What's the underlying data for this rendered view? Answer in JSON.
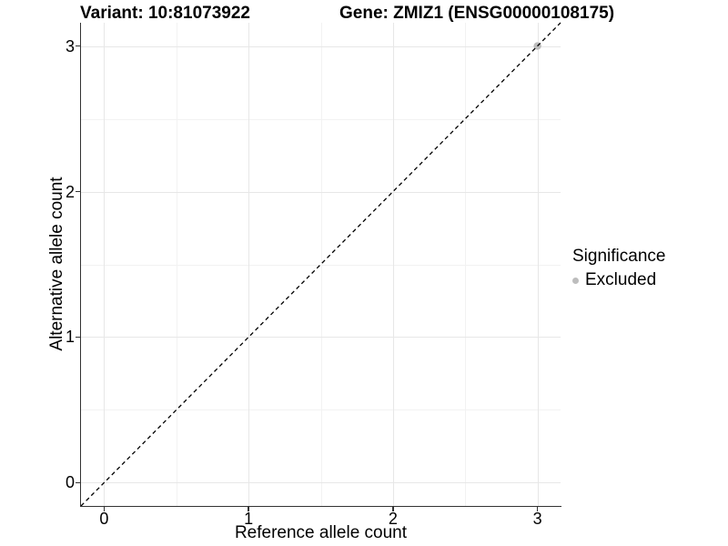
{
  "header": {
    "variant_title": "Variant: 10:81073922",
    "gene_title": "Gene: ZMIZ1 (ENSG00000108175)"
  },
  "legend": {
    "title": "Significance",
    "items": [
      {
        "label": "Excluded",
        "color": "#bdbdbd"
      }
    ]
  },
  "chart_data": {
    "type": "scatter",
    "title": "Variant: 10:81073922 | Gene: ZMIZ1 (ENSG00000108175)",
    "xlabel": "Reference allele count",
    "ylabel": "Alternative allele count",
    "xlim": [
      -0.16,
      3.16
    ],
    "ylim": [
      -0.16,
      3.16
    ],
    "x_ticks": [
      0,
      1,
      2,
      3
    ],
    "y_ticks": [
      0,
      1,
      2,
      3
    ],
    "x_minor_ticks": [
      0.5,
      1.5,
      2.5
    ],
    "y_minor_ticks": [
      0.5,
      1.5,
      2.5
    ],
    "grid": true,
    "legend_position": "right",
    "series": [
      {
        "name": "Excluded",
        "color": "#bdbdbd",
        "points": [
          [
            3,
            3
          ]
        ]
      }
    ],
    "reference_line": {
      "style": "dashed",
      "slope": 1,
      "intercept": 0,
      "color": "#000000"
    }
  },
  "colors": {
    "axis_line": "#333333",
    "grid_major": "#e7e7e7",
    "grid_minor": "#f2f2f2",
    "point_excluded": "#bdbdbd"
  }
}
